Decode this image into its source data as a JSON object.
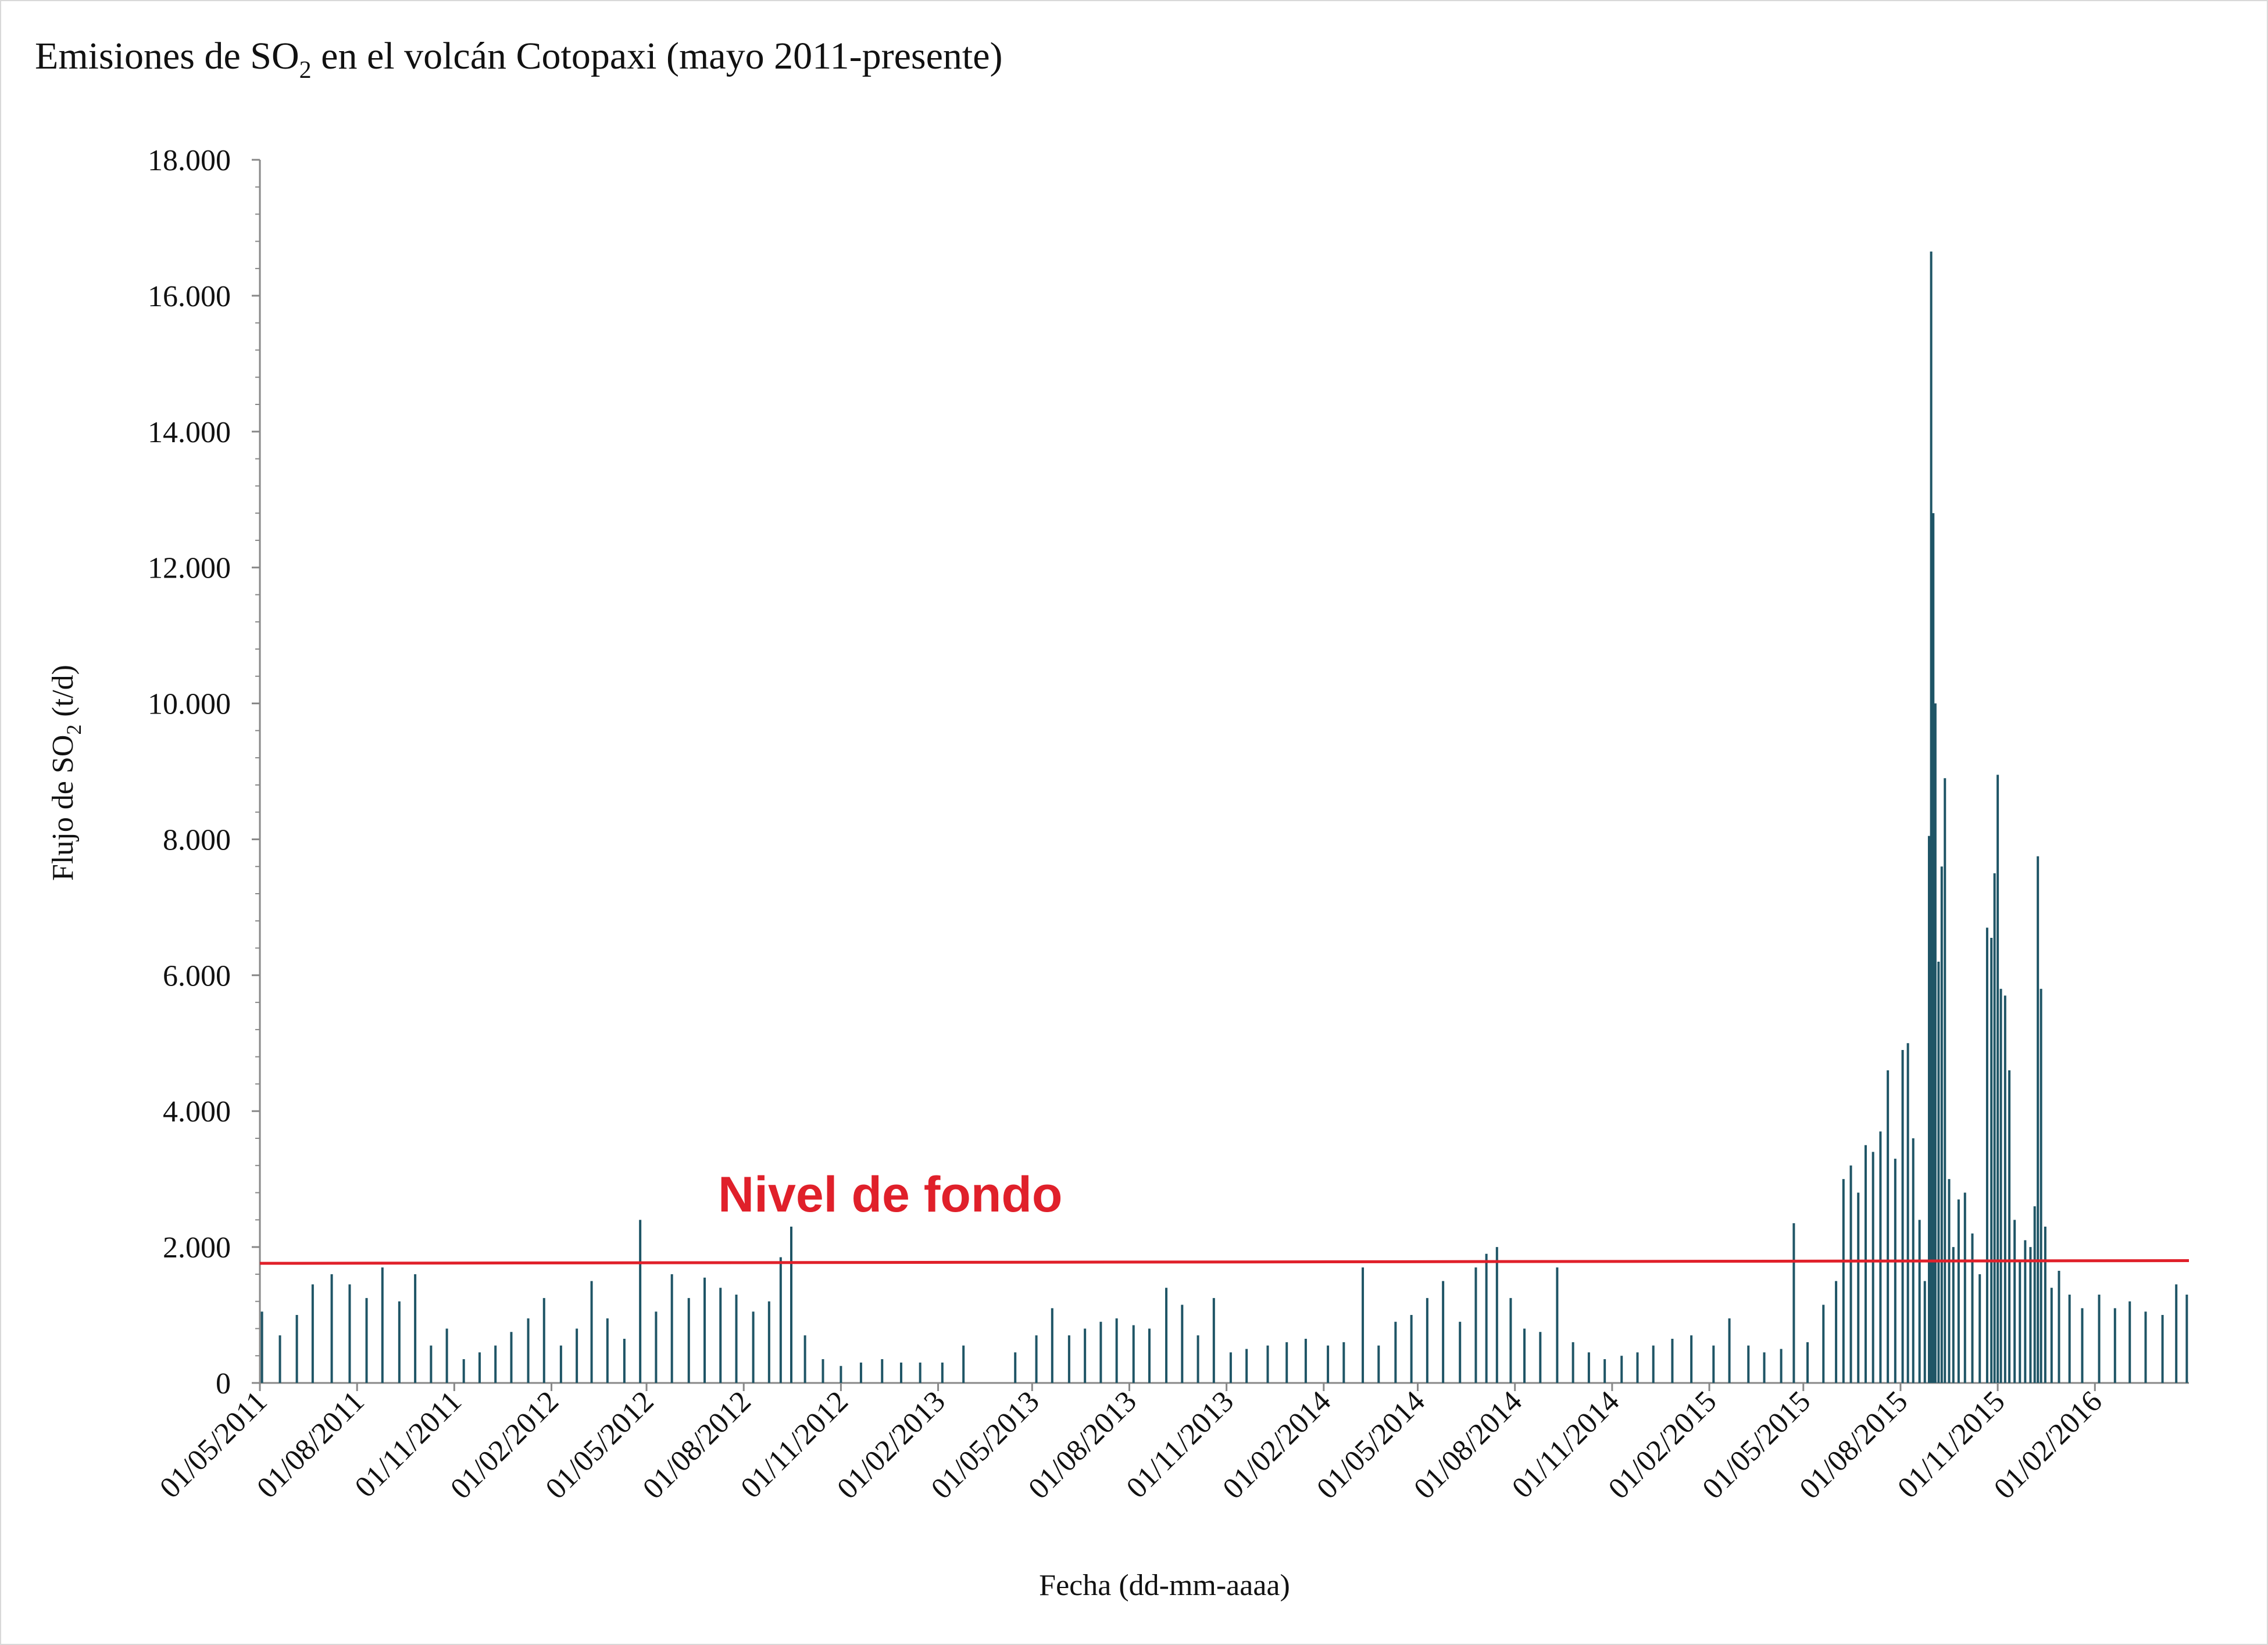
{
  "colors": {
    "bars": "#1f5566",
    "background_level": "#e0202a",
    "axis": "#888888",
    "text": "#111111"
  },
  "chart_data": {
    "type": "bar",
    "title": {
      "prefix": "Emisiones de SO",
      "subscript": "2",
      "suffix": " en el volcán Cotopaxi (mayo 2011-presente)"
    },
    "xlabel": "Fecha (dd-mm-aaaa)",
    "ylabel": {
      "prefix": "Flujo de SO",
      "subscript": "2",
      "suffix": " (t/d)"
    },
    "ylim": [
      0,
      18000
    ],
    "y_ticks": [
      0,
      2000,
      4000,
      6000,
      8000,
      10000,
      12000,
      14000,
      16000,
      18000
    ],
    "y_tick_labels": [
      "0",
      "2.000",
      "4.000",
      "6.000",
      "8.000",
      "10.000",
      "12.000",
      "14.000",
      "16.000",
      "18.000"
    ],
    "x_range": [
      "2011-05-01",
      "2016-04-30"
    ],
    "x_ticks": [
      "2011-05-01",
      "2011-08-01",
      "2011-11-01",
      "2012-02-01",
      "2012-05-01",
      "2012-08-01",
      "2012-11-01",
      "2013-02-01",
      "2013-05-01",
      "2013-08-01",
      "2013-11-01",
      "2014-02-01",
      "2014-05-01",
      "2014-08-01",
      "2014-11-01",
      "2015-02-01",
      "2015-05-01",
      "2015-08-01",
      "2015-11-01",
      "2016-02-01"
    ],
    "x_tick_labels": [
      "01/05/2011",
      "01/08/2011",
      "01/11/2011",
      "01/02/2012",
      "01/05/2012",
      "01/08/2012",
      "01/11/2012",
      "01/02/2013",
      "01/05/2013",
      "01/08/2013",
      "01/11/2013",
      "01/02/2014",
      "01/05/2014",
      "01/08/2014",
      "01/11/2014",
      "01/02/2015",
      "01/05/2015",
      "01/08/2015",
      "01/11/2015",
      "01/02/2016"
    ],
    "grid": false,
    "legend": "none",
    "series": [
      {
        "values": [
          {
            "x": "2011-05-03",
            "y": 1050
          },
          {
            "x": "2011-05-20",
            "y": 700
          },
          {
            "x": "2011-06-05",
            "y": 1000
          },
          {
            "x": "2011-06-20",
            "y": 1450
          },
          {
            "x": "2011-07-08",
            "y": 1600
          },
          {
            "x": "2011-07-25",
            "y": 1450
          },
          {
            "x": "2011-08-10",
            "y": 1250
          },
          {
            "x": "2011-08-25",
            "y": 1700
          },
          {
            "x": "2011-09-10",
            "y": 1200
          },
          {
            "x": "2011-09-25",
            "y": 1600
          },
          {
            "x": "2011-10-10",
            "y": 550
          },
          {
            "x": "2011-10-25",
            "y": 800
          },
          {
            "x": "2011-11-10",
            "y": 350
          },
          {
            "x": "2011-11-25",
            "y": 450
          },
          {
            "x": "2011-12-10",
            "y": 550
          },
          {
            "x": "2011-12-25",
            "y": 750
          },
          {
            "x": "2012-01-10",
            "y": 950
          },
          {
            "x": "2012-01-25",
            "y": 1250
          },
          {
            "x": "2012-02-10",
            "y": 550
          },
          {
            "x": "2012-02-25",
            "y": 800
          },
          {
            "x": "2012-03-10",
            "y": 1500
          },
          {
            "x": "2012-03-25",
            "y": 950
          },
          {
            "x": "2012-04-10",
            "y": 650
          },
          {
            "x": "2012-04-25",
            "y": 2400
          },
          {
            "x": "2012-05-10",
            "y": 1050
          },
          {
            "x": "2012-05-25",
            "y": 1600
          },
          {
            "x": "2012-06-10",
            "y": 1250
          },
          {
            "x": "2012-06-25",
            "y": 1550
          },
          {
            "x": "2012-07-10",
            "y": 1400
          },
          {
            "x": "2012-07-25",
            "y": 1300
          },
          {
            "x": "2012-08-10",
            "y": 1050
          },
          {
            "x": "2012-08-25",
            "y": 1200
          },
          {
            "x": "2012-09-05",
            "y": 1850
          },
          {
            "x": "2012-09-15",
            "y": 2300
          },
          {
            "x": "2012-09-28",
            "y": 700
          },
          {
            "x": "2012-10-15",
            "y": 350
          },
          {
            "x": "2012-11-01",
            "y": 250
          },
          {
            "x": "2012-11-20",
            "y": 300
          },
          {
            "x": "2012-12-10",
            "y": 350
          },
          {
            "x": "2012-12-28",
            "y": 300
          },
          {
            "x": "2013-01-15",
            "y": 300
          },
          {
            "x": "2013-02-05",
            "y": 300
          },
          {
            "x": "2013-02-25",
            "y": 550
          },
          {
            "x": "2013-04-15",
            "y": 450
          },
          {
            "x": "2013-05-05",
            "y": 700
          },
          {
            "x": "2013-05-20",
            "y": 1100
          },
          {
            "x": "2013-06-05",
            "y": 700
          },
          {
            "x": "2013-06-20",
            "y": 800
          },
          {
            "x": "2013-07-05",
            "y": 900
          },
          {
            "x": "2013-07-20",
            "y": 950
          },
          {
            "x": "2013-08-05",
            "y": 850
          },
          {
            "x": "2013-08-20",
            "y": 800
          },
          {
            "x": "2013-09-05",
            "y": 1400
          },
          {
            "x": "2013-09-20",
            "y": 1150
          },
          {
            "x": "2013-10-05",
            "y": 700
          },
          {
            "x": "2013-10-20",
            "y": 1250
          },
          {
            "x": "2013-11-05",
            "y": 450
          },
          {
            "x": "2013-11-20",
            "y": 500
          },
          {
            "x": "2013-12-10",
            "y": 550
          },
          {
            "x": "2013-12-28",
            "y": 600
          },
          {
            "x": "2014-01-15",
            "y": 650
          },
          {
            "x": "2014-02-05",
            "y": 550
          },
          {
            "x": "2014-02-20",
            "y": 600
          },
          {
            "x": "2014-03-10",
            "y": 1700
          },
          {
            "x": "2014-03-25",
            "y": 550
          },
          {
            "x": "2014-04-10",
            "y": 900
          },
          {
            "x": "2014-04-25",
            "y": 1000
          },
          {
            "x": "2014-05-10",
            "y": 1250
          },
          {
            "x": "2014-05-25",
            "y": 1500
          },
          {
            "x": "2014-06-10",
            "y": 900
          },
          {
            "x": "2014-06-25",
            "y": 1700
          },
          {
            "x": "2014-07-05",
            "y": 1900
          },
          {
            "x": "2014-07-15",
            "y": 2000
          },
          {
            "x": "2014-07-28",
            "y": 1250
          },
          {
            "x": "2014-08-10",
            "y": 800
          },
          {
            "x": "2014-08-25",
            "y": 750
          },
          {
            "x": "2014-09-10",
            "y": 1700
          },
          {
            "x": "2014-09-25",
            "y": 600
          },
          {
            "x": "2014-10-10",
            "y": 450
          },
          {
            "x": "2014-10-25",
            "y": 350
          },
          {
            "x": "2014-11-10",
            "y": 400
          },
          {
            "x": "2014-11-25",
            "y": 450
          },
          {
            "x": "2014-12-10",
            "y": 550
          },
          {
            "x": "2014-12-28",
            "y": 650
          },
          {
            "x": "2015-01-15",
            "y": 700
          },
          {
            "x": "2015-02-05",
            "y": 550
          },
          {
            "x": "2015-02-20",
            "y": 950
          },
          {
            "x": "2015-03-10",
            "y": 550
          },
          {
            "x": "2015-03-25",
            "y": 450
          },
          {
            "x": "2015-04-10",
            "y": 500
          },
          {
            "x": "2015-04-22",
            "y": 2350
          },
          {
            "x": "2015-05-05",
            "y": 600
          },
          {
            "x": "2015-05-20",
            "y": 1150
          },
          {
            "x": "2015-06-01",
            "y": 1500
          },
          {
            "x": "2015-06-08",
            "y": 3000
          },
          {
            "x": "2015-06-15",
            "y": 3200
          },
          {
            "x": "2015-06-22",
            "y": 2800
          },
          {
            "x": "2015-06-29",
            "y": 3500
          },
          {
            "x": "2015-07-06",
            "y": 3400
          },
          {
            "x": "2015-07-13",
            "y": 3700
          },
          {
            "x": "2015-07-20",
            "y": 4600
          },
          {
            "x": "2015-07-27",
            "y": 3300
          },
          {
            "x": "2015-08-03",
            "y": 4900
          },
          {
            "x": "2015-08-08",
            "y": 5000
          },
          {
            "x": "2015-08-13",
            "y": 3600
          },
          {
            "x": "2015-08-19",
            "y": 2400
          },
          {
            "x": "2015-08-24",
            "y": 1500
          },
          {
            "x": "2015-08-28",
            "y": 8050
          },
          {
            "x": "2015-08-30",
            "y": 16650
          },
          {
            "x": "2015-09-01",
            "y": 12800
          },
          {
            "x": "2015-09-03",
            "y": 10000
          },
          {
            "x": "2015-09-06",
            "y": 6200
          },
          {
            "x": "2015-09-09",
            "y": 7600
          },
          {
            "x": "2015-09-12",
            "y": 8900
          },
          {
            "x": "2015-09-16",
            "y": 3000
          },
          {
            "x": "2015-09-20",
            "y": 2000
          },
          {
            "x": "2015-09-25",
            "y": 2700
          },
          {
            "x": "2015-10-01",
            "y": 2800
          },
          {
            "x": "2015-10-08",
            "y": 2200
          },
          {
            "x": "2015-10-15",
            "y": 1600
          },
          {
            "x": "2015-10-22",
            "y": 6700
          },
          {
            "x": "2015-10-26",
            "y": 6550
          },
          {
            "x": "2015-10-29",
            "y": 7500
          },
          {
            "x": "2015-11-01",
            "y": 8950
          },
          {
            "x": "2015-11-04",
            "y": 5800
          },
          {
            "x": "2015-11-08",
            "y": 5700
          },
          {
            "x": "2015-11-12",
            "y": 4600
          },
          {
            "x": "2015-11-17",
            "y": 2400
          },
          {
            "x": "2015-11-22",
            "y": 1800
          },
          {
            "x": "2015-11-27",
            "y": 2100
          },
          {
            "x": "2015-12-02",
            "y": 2000
          },
          {
            "x": "2015-12-06",
            "y": 2600
          },
          {
            "x": "2015-12-09",
            "y": 7750
          },
          {
            "x": "2015-12-12",
            "y": 5800
          },
          {
            "x": "2015-12-16",
            "y": 2300
          },
          {
            "x": "2015-12-22",
            "y": 1400
          },
          {
            "x": "2015-12-29",
            "y": 1650
          },
          {
            "x": "2016-01-08",
            "y": 1300
          },
          {
            "x": "2016-01-20",
            "y": 1100
          },
          {
            "x": "2016-02-05",
            "y": 1300
          },
          {
            "x": "2016-02-20",
            "y": 1100
          },
          {
            "x": "2016-03-05",
            "y": 1200
          },
          {
            "x": "2016-03-20",
            "y": 1050
          },
          {
            "x": "2016-04-05",
            "y": 1000
          },
          {
            "x": "2016-04-18",
            "y": 1450
          },
          {
            "x": "2016-04-28",
            "y": 1300
          }
        ]
      }
    ],
    "background_level": {
      "label": "Nivel de fondo",
      "points": [
        {
          "x": "2011-05-01",
          "y": 1760
        },
        {
          "x": "2013-10-01",
          "y": 1780
        },
        {
          "x": "2016-04-30",
          "y": 1800
        }
      ]
    }
  }
}
